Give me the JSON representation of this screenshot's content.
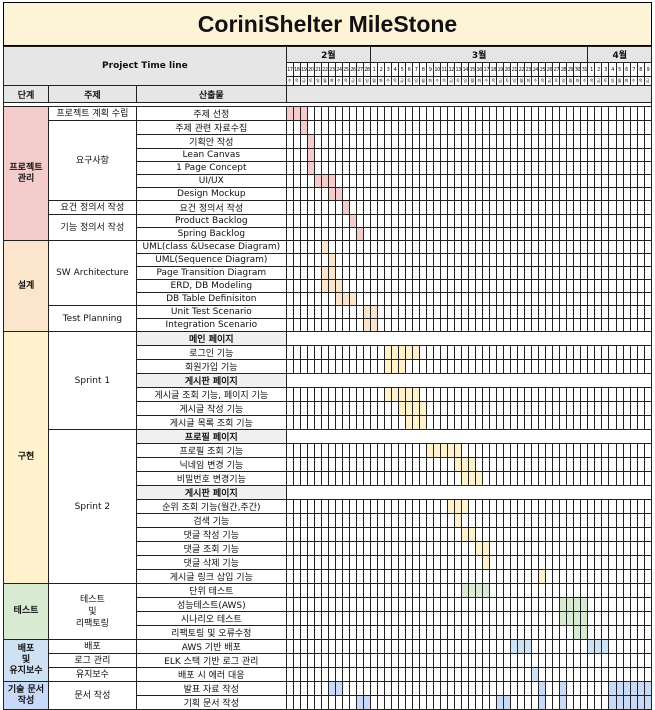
{
  "title": "CoriniShelter MileStone",
  "header": {
    "timeline_label": "Project Time line",
    "col_stage": "단계",
    "col_topic": "주제",
    "col_output": "산출물",
    "months": [
      {
        "label": "2월",
        "span": 12
      },
      {
        "label": "3월",
        "span": 31
      },
      {
        "label": "4월",
        "span": 9
      }
    ],
    "days": [
      "17",
      "18",
      "19",
      "20",
      "21",
      "22",
      "23",
      "24",
      "25",
      "26",
      "27",
      "28",
      "1",
      "2",
      "3",
      "4",
      "5",
      "6",
      "7",
      "8",
      "9",
      "10",
      "11",
      "12",
      "13",
      "14",
      "15",
      "16",
      "17",
      "18",
      "19",
      "20",
      "21",
      "22",
      "23",
      "24",
      "25",
      "26",
      "27",
      "28",
      "29",
      "30",
      "31",
      "1",
      "2",
      "3",
      "4",
      "5",
      "6",
      "7",
      "8",
      "9"
    ],
    "weekdays": [
      "수",
      "목",
      "금",
      "토",
      "일",
      "월",
      "화",
      "수",
      "목",
      "금",
      "토",
      "일",
      "월",
      "화",
      "수",
      "목",
      "금",
      "토",
      "일",
      "월",
      "화",
      "수",
      "목",
      "금",
      "토",
      "일",
      "월",
      "화",
      "수",
      "목",
      "금",
      "토",
      "일",
      "월",
      "화",
      "수",
      "목",
      "금",
      "토",
      "일",
      "월",
      "화",
      "수",
      "목",
      "금",
      "토",
      "일",
      "월",
      "화",
      "수",
      "목",
      "금"
    ]
  },
  "colors": {
    "pm": "#f4cccc",
    "design": "#fce5cd",
    "impl": "#fff2cc",
    "test": "#d9ead3",
    "deploy": "#cfe2f3",
    "doc": "#c9daf8"
  },
  "stages": [
    {
      "label": "프로젝트\n관리",
      "color": "pm",
      "rows": 10
    },
    {
      "label": "설계",
      "color": "design",
      "rows": 7
    },
    {
      "label": "구현",
      "color": "impl",
      "rows": 18
    },
    {
      "label": "테스트",
      "color": "test",
      "rows": 4
    },
    {
      "label": "배포\n및\n유지보수",
      "color": "deploy",
      "rows": 3
    },
    {
      "label": "기술 문서\n작성",
      "color": "doc",
      "rows": 2
    }
  ],
  "topics": [
    {
      "label": "프로젝트 계획 수립",
      "rows": 1
    },
    {
      "label": "요구사항",
      "rows": 6
    },
    {
      "label": "요건 정의서 작성",
      "rows": 1
    },
    {
      "label": "기능 정의서 작성",
      "rows": 2
    },
    {
      "label": "SW Architecture",
      "rows": 5
    },
    {
      "label": "Test Planning",
      "rows": 2
    },
    {
      "label": "Sprint 1",
      "rows": 7
    },
    {
      "label": "Sprint 2",
      "rows": 11
    },
    {
      "label": "테스트\n및\n리팩토링",
      "rows": 4
    },
    {
      "label": "배포",
      "rows": 1
    },
    {
      "label": "로그 관리",
      "rows": 1
    },
    {
      "label": "유지보수",
      "rows": 1
    },
    {
      "label": "문서 작성",
      "rows": 2
    }
  ],
  "rows": [
    {
      "label": "주제 선정",
      "color": "pm",
      "bars": [
        [
          0,
          3
        ]
      ]
    },
    {
      "label": "주제 관련 자료수집",
      "color": "pm",
      "bars": [
        [
          2,
          3
        ]
      ]
    },
    {
      "label": "기획안 작성",
      "color": "pm",
      "bars": [
        [
          3,
          4
        ]
      ]
    },
    {
      "label": "Lean Canvas",
      "color": "pm",
      "bars": [
        [
          3,
          4
        ]
      ]
    },
    {
      "label": "1 Page Concept",
      "color": "pm",
      "bars": [
        [
          3,
          4
        ]
      ]
    },
    {
      "label": "UI/UX",
      "color": "pm",
      "bars": [
        [
          4,
          7
        ]
      ]
    },
    {
      "label": "Design Mockup",
      "color": "pm",
      "bars": [
        [
          6,
          8
        ]
      ]
    },
    {
      "label": "요건 정의서 작성",
      "color": "pm",
      "bars": [
        [
          8,
          9
        ]
      ]
    },
    {
      "label": "Product Backlog",
      "color": "pm",
      "bars": [
        [
          9,
          10
        ]
      ]
    },
    {
      "label": "Spring Backlog",
      "color": "pm",
      "bars": [
        [
          10,
          11
        ]
      ]
    },
    {
      "label": "UML(class &Usecase Diagram)",
      "color": "design",
      "bars": [
        [
          5,
          6
        ]
      ]
    },
    {
      "label": "UML(Sequence Diagram)",
      "color": "design",
      "bars": [
        [
          6,
          7
        ]
      ]
    },
    {
      "label": "Page Transition Diagram",
      "color": "design",
      "bars": [
        [
          5,
          7
        ]
      ]
    },
    {
      "label": "ERD, DB Modeling",
      "color": "design",
      "bars": [
        [
          5,
          8
        ]
      ]
    },
    {
      "label": "DB Table Definisiton",
      "color": "design",
      "bars": [
        [
          7,
          10
        ]
      ]
    },
    {
      "label": "Unit Test Scenario",
      "color": "design",
      "bars": [
        [
          11,
          13
        ]
      ]
    },
    {
      "label": "Integration Scenario",
      "color": "design",
      "bars": [
        [
          11,
          13
        ]
      ]
    },
    {
      "label": "메인 페이지",
      "sub": true
    },
    {
      "label": "로그인 기능",
      "color": "impl",
      "bars": [
        [
          14,
          19
        ]
      ]
    },
    {
      "label": "회원가입 기능",
      "color": "impl",
      "bars": [
        [
          14,
          17
        ]
      ]
    },
    {
      "label": "게시판 페이지",
      "sub": true
    },
    {
      "label": "게시글 조회 기능, 페이지 기능",
      "color": "impl",
      "bars": [
        [
          14,
          19
        ]
      ]
    },
    {
      "label": "게시글 작성 기능",
      "color": "impl",
      "bars": [
        [
          16,
          20
        ]
      ]
    },
    {
      "label": "게시글 목록 조회 기능",
      "color": "impl",
      "bars": [
        [
          17,
          20
        ]
      ]
    },
    {
      "label": "프로필 페이지",
      "sub": true
    },
    {
      "label": "프로필 조회 기능",
      "color": "impl",
      "bars": [
        [
          20,
          25
        ]
      ]
    },
    {
      "label": "닉네임 변경 기능",
      "color": "impl",
      "bars": [
        [
          24,
          27
        ]
      ]
    },
    {
      "label": "비밀번호 변경기능",
      "color": "impl",
      "bars": [
        [
          25,
          28
        ]
      ]
    },
    {
      "label": "게시판 페이지",
      "sub": true
    },
    {
      "label": "순위 조회 기능(월간,주간)",
      "color": "impl",
      "bars": [
        [
          23,
          26
        ]
      ]
    },
    {
      "label": "검색 기능",
      "color": "impl",
      "bars": [
        [
          24,
          25
        ]
      ]
    },
    {
      "label": "댓글 작성 기능",
      "color": "impl",
      "bars": [
        [
          25,
          27
        ]
      ]
    },
    {
      "label": "댓글 조회 기능",
      "color": "impl",
      "bars": [
        [
          27,
          29
        ]
      ]
    },
    {
      "label": "댓글 삭제 기능",
      "color": "impl",
      "bars": [
        [
          28,
          29
        ]
      ]
    },
    {
      "label": "게시글 링크 삽입 기능",
      "color": "impl",
      "bars": [
        [
          36,
          37
        ]
      ]
    },
    {
      "label": "단위 테스트",
      "color": "test",
      "bars": [
        [
          25,
          29
        ]
      ]
    },
    {
      "label": "성능테스트(AWS)",
      "color": "test",
      "bars": [
        [
          39,
          43
        ]
      ]
    },
    {
      "label": "시나리오 테스트",
      "color": "test",
      "bars": [
        [
          39,
          43
        ]
      ]
    },
    {
      "label": "리팩토링 및 오류수정",
      "color": "test",
      "bars": [
        [
          41,
          43
        ]
      ]
    },
    {
      "label": "AWS 기반 배포",
      "color": "deploy",
      "bars": [
        [
          32,
          35
        ],
        [
          43,
          46
        ]
      ]
    },
    {
      "label": "ELK 스택 기반 로그 관리",
      "color": "deploy",
      "bars": []
    },
    {
      "label": "배포 시 에러 대응",
      "color": "deploy",
      "bars": [
        [
          35,
          36
        ]
      ]
    },
    {
      "label": "발표 자료 작성",
      "color": "doc",
      "bars": [
        [
          6,
          8
        ],
        [
          36,
          37
        ],
        [
          39,
          40
        ],
        [
          46,
          52
        ]
      ]
    },
    {
      "label": "기획 문서 작성",
      "color": "doc",
      "bars": [
        [
          10,
          12
        ],
        [
          30,
          32
        ],
        [
          36,
          37
        ],
        [
          39,
          40
        ],
        [
          46,
          52
        ]
      ]
    }
  ]
}
